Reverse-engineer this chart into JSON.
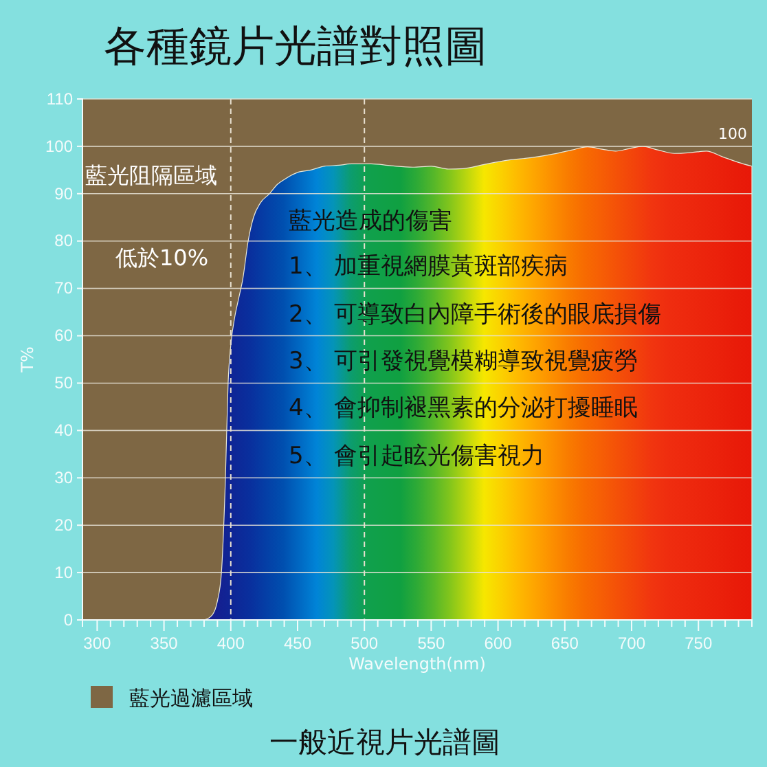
{
  "chart_data": {
    "type": "area",
    "title": "各種鏡片光譜對照圖",
    "xlabel": "Wavelength(nm)",
    "ylabel": "T%",
    "x": [
      380,
      386,
      390,
      393,
      396,
      398,
      400,
      403,
      406,
      409,
      413,
      417,
      422,
      429,
      435,
      440,
      450,
      460,
      470,
      481,
      490,
      505,
      520,
      536,
      550,
      563,
      574,
      590,
      608,
      625,
      642,
      655,
      667,
      678,
      688,
      698,
      708,
      720,
      732,
      745,
      756,
      768,
      780,
      790
    ],
    "series": [
      {
        "values": [
          0,
          1,
          4,
          10,
          30,
          50,
          58,
          64,
          68,
          72,
          80,
          85,
          88,
          90,
          92,
          93,
          94.5,
          95,
          95.8,
          96,
          96.3,
          96.3,
          95.9,
          95.6,
          95.8,
          95.2,
          95.3,
          96.2,
          97.1,
          97.6,
          98.4,
          99.2,
          99.9,
          99.4,
          99,
          99.5,
          100,
          99.2,
          98.5,
          98.7,
          99,
          97.8,
          96.6,
          95.8
        ]
      }
    ],
    "xlim": [
      289,
      790
    ],
    "ylim": [
      0,
      110
    ],
    "xticks": [
      300,
      {
        "value": 310,
        "label": null
      },
      {
        "value": 320,
        "label": null
      },
      {
        "value": 330,
        "label": null
      },
      {
        "value": 340,
        "label": null
      },
      350,
      {
        "value": 360,
        "label": null
      },
      {
        "value": 370,
        "label": null
      },
      {
        "value": 380,
        "label": null
      },
      {
        "value": 390,
        "label": null
      },
      400,
      {
        "value": 410,
        "label": null
      },
      {
        "value": 420,
        "label": null
      },
      {
        "value": 430,
        "label": null
      },
      {
        "value": 440,
        "label": null
      },
      450,
      {
        "value": 460,
        "label": null
      },
      {
        "value": 470,
        "label": null
      },
      {
        "value": 480,
        "label": null
      },
      {
        "value": 490,
        "label": null
      },
      500,
      {
        "value": 510,
        "label": null
      },
      {
        "value": 520,
        "label": null
      },
      {
        "value": 530,
        "label": null
      },
      {
        "value": 540,
        "label": null
      },
      550,
      {
        "value": 560,
        "label": null
      },
      {
        "value": 570,
        "label": null
      },
      {
        "value": 580,
        "label": null
      },
      {
        "value": 590,
        "label": null
      },
      600,
      {
        "value": 610,
        "label": null
      },
      {
        "value": 620,
        "label": null
      },
      {
        "value": 630,
        "label": null
      },
      {
        "value": 640,
        "label": null
      },
      650,
      {
        "value": 660,
        "label": null
      },
      {
        "value": 670,
        "label": null
      },
      {
        "value": 680,
        "label": null
      },
      {
        "value": 690,
        "label": null
      },
      700,
      {
        "value": 710,
        "label": null
      },
      {
        "value": 720,
        "label": null
      },
      {
        "value": 730,
        "label": null
      },
      {
        "value": 740,
        "label": null
      },
      750,
      {
        "value": 760,
        "label": null
      },
      {
        "value": 770,
        "label": null
      },
      {
        "value": 780,
        "label": null
      }
    ],
    "yticks": [
      0,
      10,
      20,
      30,
      40,
      50,
      60,
      70,
      80,
      90,
      100,
      110
    ],
    "grid": "y",
    "legend": "bottom left",
    "bands": [
      {
        "axis": "y",
        "from": 0,
        "to": 110,
        "label": "藍光過濾區域",
        "color": "#7e6744"
      }
    ],
    "ref_lines": [
      {
        "axis": "x",
        "value": 400,
        "line_style": "dashed",
        "color": "#e8e0d0"
      },
      {
        "axis": "x",
        "value": 500,
        "line_style": "dashed",
        "color": "#e8e0d0"
      }
    ],
    "annotations": [
      "100",
      "藍光阻隔區域",
      "低於10%",
      "藍光造成的傷害",
      "1、 加重視網膜黃斑部疾病",
      "2、 可導致白內障手術後的眼底損傷",
      "3、 可引發視覺模糊導致視覺疲勞",
      "4、 會抑制褪黑素的分泌打擾睡眠",
      "5、 會引起眩光傷害視力",
      "一般近視片光譜圖"
    ]
  }
}
